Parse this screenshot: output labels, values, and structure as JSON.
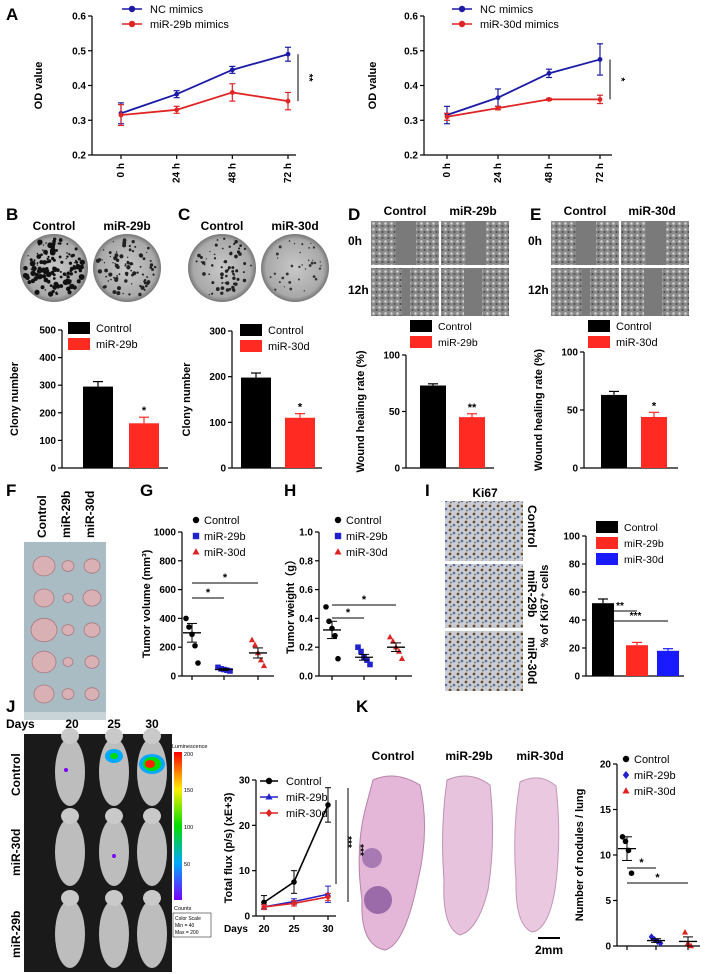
{
  "panel_letters": {
    "A": "A",
    "B": "B",
    "C": "C",
    "D": "D",
    "E": "E",
    "F": "F",
    "G": "G",
    "H": "H",
    "I": "I",
    "J": "J",
    "K": "K"
  },
  "chart_data": [
    {
      "id": "A1",
      "type": "line",
      "x": [
        "0 h",
        "24 h",
        "48 h",
        "72 h"
      ],
      "ylabel": "OD value",
      "ylim": [
        0.2,
        0.6
      ],
      "yticks": [
        "0.2",
        "0.3",
        "0.4",
        "0.5",
        "0.6"
      ],
      "series": [
        {
          "name": "NC mimics",
          "color": "#1a1aa6",
          "values": [
            0.32,
            0.375,
            0.445,
            0.49
          ],
          "err": [
            0.03,
            0.01,
            0.01,
            0.02
          ]
        },
        {
          "name": "miR-29b mimics",
          "color": "#e02424",
          "values": [
            0.315,
            0.33,
            0.38,
            0.355
          ],
          "err": [
            0.03,
            0.01,
            0.025,
            0.025
          ]
        }
      ],
      "annotation": "**"
    },
    {
      "id": "A2",
      "type": "line",
      "x": [
        "0 h",
        "24 h",
        "48 h",
        "72 h"
      ],
      "ylabel": "OD value",
      "ylim": [
        0.2,
        0.6
      ],
      "yticks": [
        "0.2",
        "0.3",
        "0.4",
        "0.5",
        "0.6"
      ],
      "series": [
        {
          "name": "NC mimics",
          "color": "#1a1aa6",
          "values": [
            0.315,
            0.365,
            0.435,
            0.475
          ],
          "err": [
            0.025,
            0.025,
            0.012,
            0.045
          ]
        },
        {
          "name": "miR-30d mimics",
          "color": "#e02424",
          "values": [
            0.31,
            0.335,
            0.36,
            0.36
          ],
          "err": [
            0.01,
            0.005,
            0.003,
            0.012
          ]
        }
      ],
      "annotation": "*"
    },
    {
      "id": "B",
      "type": "bar",
      "ylabel": "Clony number",
      "ylim": [
        0,
        500
      ],
      "yticks": [
        "0",
        "100",
        "200",
        "300",
        "400",
        "500"
      ],
      "categories": [
        "Control",
        "miR-29b"
      ],
      "values": [
        295,
        162
      ],
      "err": [
        18,
        22
      ],
      "colors": [
        "#000000",
        "#ff2a22"
      ],
      "annotation": "*"
    },
    {
      "id": "C",
      "type": "bar",
      "ylabel": "Clony number",
      "ylim": [
        0,
        300
      ],
      "yticks": [
        "0",
        "100",
        "200",
        "300"
      ],
      "categories": [
        "Control",
        "miR-30d"
      ],
      "values": [
        198,
        110
      ],
      "err": [
        10,
        9
      ],
      "colors": [
        "#000000",
        "#ff2a22"
      ],
      "annotation": "*"
    },
    {
      "id": "D",
      "type": "bar",
      "ylabel": "Wound healing rate (%)",
      "ylim": [
        0,
        100
      ],
      "yticks": [
        "0",
        "50",
        "100"
      ],
      "categories": [
        "Control",
        "miR-29b"
      ],
      "values": [
        73,
        45
      ],
      "err": [
        1.5,
        3
      ],
      "colors": [
        "#000000",
        "#ff2a22"
      ],
      "annotation": "**"
    },
    {
      "id": "E",
      "type": "bar",
      "ylabel": "Wound healing rate (%)",
      "ylim": [
        0,
        100
      ],
      "yticks": [
        "0",
        "50",
        "100"
      ],
      "categories": [
        "Control",
        "miR-30d"
      ],
      "values": [
        63,
        44
      ],
      "err": [
        3,
        4
      ],
      "colors": [
        "#000000",
        "#ff2a22"
      ],
      "annotation": "*"
    },
    {
      "id": "G",
      "type": "scatter",
      "ylabel": "Tumor volume (mm³)",
      "ylim": [
        0,
        1000
      ],
      "yticks": [
        "0",
        "200",
        "400",
        "600",
        "800",
        "1000"
      ],
      "series": [
        {
          "name": "Control",
          "marker": "circle",
          "color": "#000000",
          "points": [
            400,
            340,
            290,
            210,
            90
          ],
          "mean": 300,
          "sem": 65
        },
        {
          "name": "miR-29b",
          "marker": "square",
          "color": "#2222cc",
          "points": [
            60,
            50,
            45,
            40,
            35
          ],
          "mean": 45,
          "sem": 6
        },
        {
          "name": "miR-30d",
          "marker": "triangle",
          "color": "#e02424",
          "points": [
            250,
            215,
            160,
            110,
            70
          ],
          "mean": 160,
          "sem": 35
        }
      ],
      "annotations": [
        "*",
        "*"
      ]
    },
    {
      "id": "H",
      "type": "scatter",
      "ylabel": "Tumor weight（g）",
      "ylim": [
        0,
        1.0
      ],
      "yticks": [
        "0.0",
        "0.2",
        "0.4",
        "0.6",
        "0.8",
        "1.0"
      ],
      "series": [
        {
          "name": "Control",
          "marker": "circle",
          "color": "#000000",
          "points": [
            0.48,
            0.38,
            0.33,
            0.28,
            0.12
          ],
          "mean": 0.32,
          "sem": 0.06
        },
        {
          "name": "miR-29b",
          "marker": "square",
          "color": "#2222cc",
          "points": [
            0.2,
            0.17,
            0.13,
            0.11,
            0.08
          ],
          "mean": 0.13,
          "sem": 0.02
        },
        {
          "name": "miR-30d",
          "marker": "triangle",
          "color": "#e02424",
          "points": [
            0.27,
            0.24,
            0.2,
            0.17,
            0.12
          ],
          "mean": 0.2,
          "sem": 0.03
        }
      ],
      "annotations": [
        "*",
        "*"
      ]
    },
    {
      "id": "I",
      "type": "bar",
      "ylabel": "% of Ki67⁺ cells",
      "ylim": [
        0,
        100
      ],
      "yticks": [
        "0",
        "20",
        "40",
        "60",
        "80",
        "100"
      ],
      "categories": [
        "Control",
        "miR-29b",
        "miR-30d"
      ],
      "values": [
        52,
        22,
        18
      ],
      "err": [
        3,
        2,
        1.5
      ],
      "colors": [
        "#000000",
        "#ff2a22",
        "#1a1aff"
      ],
      "annotations": [
        "**",
        "***"
      ]
    },
    {
      "id": "J",
      "type": "line",
      "ylabel": "Total flux (p/s) (xE+3)",
      "xlabel": "Days",
      "x": [
        "20",
        "25",
        "30"
      ],
      "ylim": [
        0,
        30
      ],
      "yticks": [
        "0",
        "10",
        "20",
        "30"
      ],
      "series": [
        {
          "name": "Control",
          "marker": "circle",
          "color": "#000000",
          "values": [
            3.0,
            7.5,
            24.5
          ],
          "err": [
            1.5,
            2.5,
            3.8
          ]
        },
        {
          "name": "miR-29b",
          "marker": "triangle",
          "color": "#2222cc",
          "values": [
            2.0,
            3.2,
            4.8
          ],
          "err": [
            0.5,
            0.6,
            1.8
          ]
        },
        {
          "name": "miR-30d",
          "marker": "diamond",
          "color": "#e02424",
          "values": [
            2.0,
            2.8,
            4.2
          ],
          "err": [
            0.5,
            0.6,
            0.8
          ]
        }
      ],
      "annotations": [
        "***",
        "***"
      ]
    },
    {
      "id": "K",
      "type": "scatter",
      "ylabel": "Number of nodules / lung",
      "ylim": [
        0,
        20
      ],
      "yticks": [
        "0",
        "5",
        "10",
        "15",
        "20"
      ],
      "series": [
        {
          "name": "Control",
          "marker": "circle",
          "color": "#000000",
          "points": [
            12,
            11.5,
            10.5,
            8
          ],
          "mean": 10.7,
          "sem": 1.3
        },
        {
          "name": "miR-29b",
          "marker": "diamond",
          "color": "#2222cc",
          "points": [
            1,
            0.7,
            0.5,
            0.3
          ],
          "mean": 0.6,
          "sem": 0.2
        },
        {
          "name": "miR-30d",
          "marker": "triangle",
          "color": "#e02424",
          "points": [
            1.5,
            0.3,
            0.0
          ],
          "mean": 0.5,
          "sem": 0.5
        }
      ],
      "annotations": [
        "*",
        "*"
      ]
    }
  ],
  "images": {
    "B_labels": [
      "Control",
      "miR-29b"
    ],
    "C_labels": [
      "Control",
      "miR-30d"
    ],
    "D_cols": [
      "Control",
      "miR-29b"
    ],
    "D_rows": [
      "0h",
      "12h"
    ],
    "E_cols": [
      "Control",
      "miR-30d"
    ],
    "E_rows": [
      "0h",
      "12h"
    ],
    "F_labels": [
      "Control",
      "miR-29b",
      "miR-30d"
    ],
    "I_title": "Ki67",
    "I_rows": [
      "Control",
      "miR-29b",
      "miR-30d"
    ],
    "J_days_label": "Days",
    "J_days": [
      "20",
      "25",
      "30"
    ],
    "J_rows": [
      "Control",
      "miR-30d",
      "miR-29b"
    ],
    "J_scale": {
      "title": "Luminescence",
      "ticks": [
        "200",
        "150",
        "100",
        "50"
      ],
      "units": "Counts",
      "legend_lines": [
        "Color Scale",
        "Min = 40",
        "Max = 200"
      ]
    },
    "K_labels": [
      "Control",
      "miR-29b",
      "miR-30d"
    ],
    "K_scale_bar": "2mm"
  },
  "colors": {
    "blue": "#1a1aa6",
    "red": "#e02424",
    "bar_red": "#ff2a22",
    "bar_blue": "#1a1aff"
  }
}
